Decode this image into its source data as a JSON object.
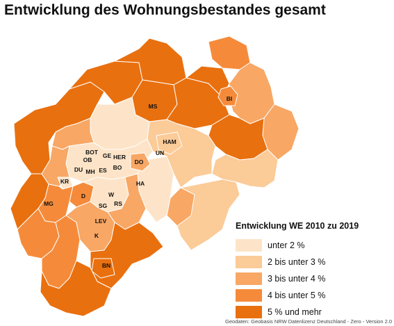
{
  "title": "Entwicklung des Wohnungsbestandes gesamt",
  "legend": {
    "title": "Entwicklung WE 2010 zu 2019",
    "items": [
      {
        "label": "unter 2 %",
        "color": "#fde4c8"
      },
      {
        "label": "2 bis unter 3 %",
        "color": "#fbcb98"
      },
      {
        "label": "3 bis unter 4 %",
        "color": "#f8a765"
      },
      {
        "label": "4 bis unter 5 %",
        "color": "#f58b3a"
      },
      {
        "label": "5 % und mehr",
        "color": "#e9700f"
      }
    ]
  },
  "cities": {
    "ms": "MS",
    "bi": "BI",
    "ham": "HAM",
    "un": "UN",
    "bot": "BOT",
    "ge": "GE",
    "her": "HER",
    "ob": "OB",
    "du": "DU",
    "mh": "MH",
    "es": "ES",
    "bo": "BO",
    "do": "DO",
    "kr": "KR",
    "ha": "HA",
    "w": "W",
    "d": "D",
    "mg": "MG",
    "sg": "SG",
    "rs": "RS",
    "lev": "LEV",
    "k": "K",
    "bn": "BN"
  },
  "source": "Geodaten: Geobasis NRW Datenlizenz Deutschland - Zero - Version 2.0"
}
